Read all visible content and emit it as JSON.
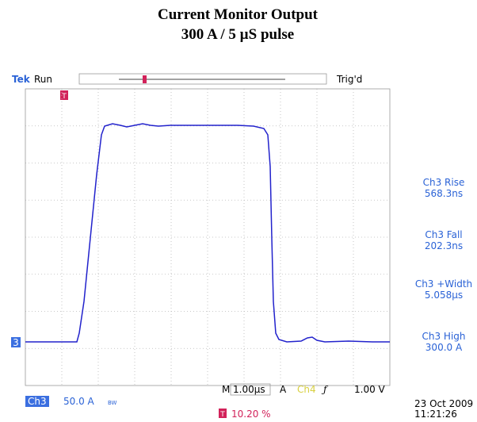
{
  "title": [
    "Current Monitor Output",
    "300 A / 5 µS pulse"
  ],
  "status": {
    "brand": "Tek",
    "state": "Run",
    "trigger": "Trig'd"
  },
  "marker": "3",
  "measurements": [
    {
      "label": "Ch3 Rise",
      "value": "568.3ns"
    },
    {
      "label": "Ch3 Fall",
      "value": "202.3ns"
    },
    {
      "label": "Ch3 +Width",
      "value": "5.058µs"
    },
    {
      "label": "Ch3 High",
      "value": "300.0 A"
    }
  ],
  "channel": {
    "name": "Ch3",
    "scale": "50.0 A"
  },
  "timebase": {
    "label": "M",
    "value": "1.00µs"
  },
  "trigger_setup": {
    "mode": "A",
    "channel": "Ch4",
    "level": "1.00 V"
  },
  "trigger_position": "10.20 %",
  "date": "23 Oct 2009",
  "time": "11:21:26"
}
